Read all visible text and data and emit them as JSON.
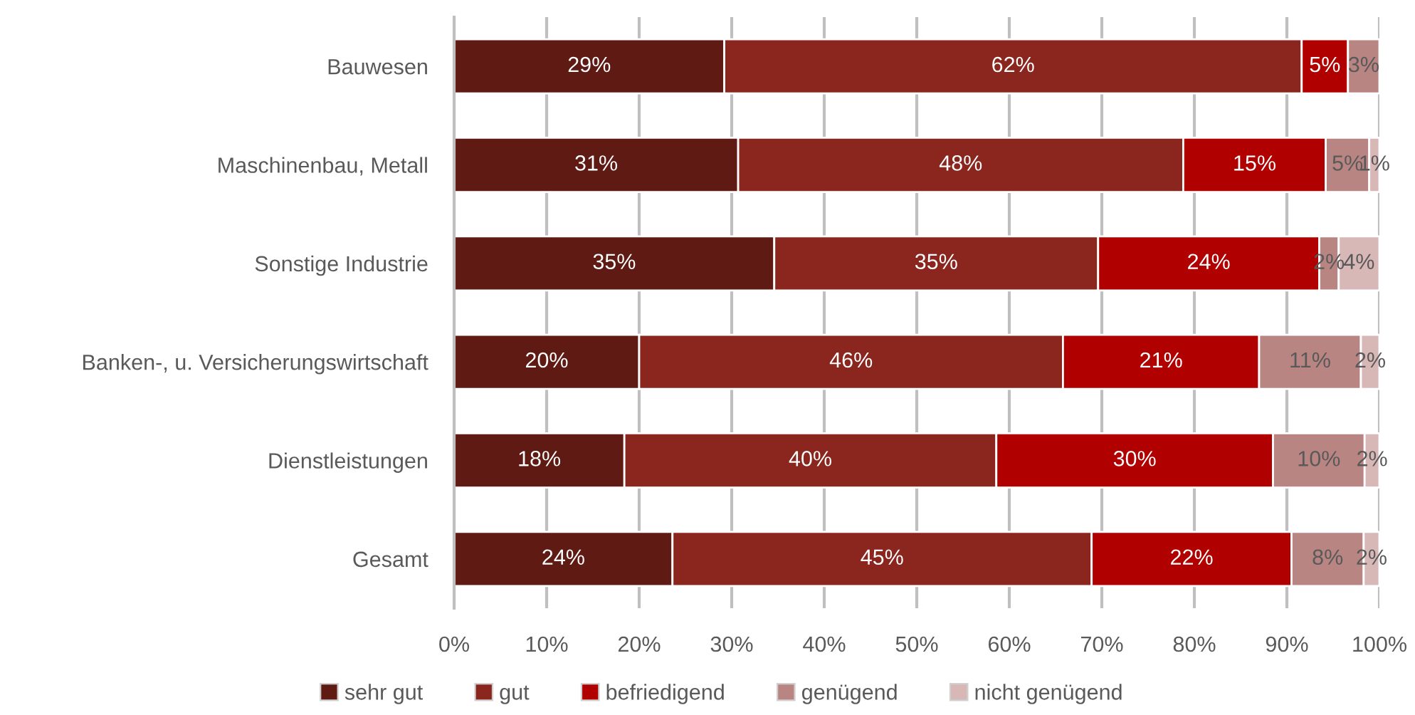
{
  "chart_data": {
    "type": "bar",
    "orientation": "horizontal",
    "stacked": true,
    "categories": [
      "Bauwesen",
      "Maschinenbau, Metall",
      "Sonstige Industrie",
      "Banken-, u. Versicherungswirtschaft",
      "Dienstleistungen",
      "Gesamt"
    ],
    "series": [
      {
        "name": "sehr gut",
        "color": "#5f1a14",
        "values": [
          29.2,
          30.7,
          34.6,
          20.0,
          18.4,
          23.6
        ],
        "value_labels": [
          "29%",
          "31%",
          "35%",
          "20%",
          "18%",
          "24%"
        ]
      },
      {
        "name": "gut",
        "color": "#8a261e",
        "values": [
          62.4,
          48.1,
          35.0,
          45.8,
          40.2,
          45.3
        ],
        "value_labels": [
          "62%",
          "48%",
          "35%",
          "46%",
          "40%",
          "45%"
        ]
      },
      {
        "name": "befriedigend",
        "color": "#b00000",
        "values": [
          5.0,
          15.4,
          23.9,
          21.2,
          29.9,
          21.6
        ],
        "value_labels": [
          "5%",
          "15%",
          "24%",
          "21%",
          "30%",
          "22%"
        ]
      },
      {
        "name": "genügend",
        "color": "#b98583",
        "values": [
          3.4,
          4.7,
          2.1,
          11.0,
          9.9,
          7.8
        ],
        "value_labels": [
          "3%",
          "5%",
          "2%",
          "11%",
          "10%",
          "8%"
        ]
      },
      {
        "name": "nicht genügend",
        "color": "#d8b7b7",
        "values": [
          null,
          1.1,
          4.4,
          2.0,
          1.6,
          1.7
        ],
        "value_labels": [
          null,
          "1%",
          "4%",
          "2%",
          "2%",
          "2%"
        ]
      }
    ],
    "xlim": [
      0,
      100
    ],
    "xticks": [
      {
        "value": 0,
        "label": "0%"
      },
      {
        "value": 10,
        "label": "10%"
      },
      {
        "value": 20,
        "label": "20%"
      },
      {
        "value": 30,
        "label": "30%"
      },
      {
        "value": 40,
        "label": "40%"
      },
      {
        "value": 50,
        "label": "50%"
      },
      {
        "value": 60,
        "label": "60%"
      },
      {
        "value": 70,
        "label": "70%"
      },
      {
        "value": 80,
        "label": "80%"
      },
      {
        "value": 90,
        "label": "90%"
      },
      {
        "value": 100,
        "label": "100%"
      }
    ],
    "grid": "x",
    "legend": "bottom"
  }
}
